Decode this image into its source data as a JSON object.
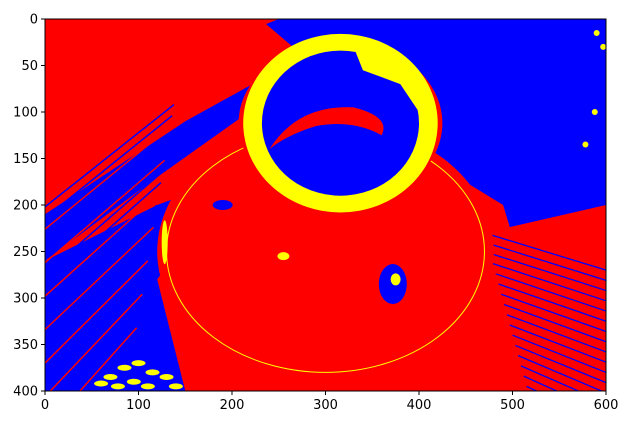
{
  "chart_data": {
    "type": "heatmap",
    "title": "",
    "xlabel": "",
    "ylabel": "",
    "xlim": [
      0,
      600
    ],
    "ylim": [
      400,
      0
    ],
    "grid": false,
    "legend": "none",
    "x_ticks": [
      "0",
      "100",
      "200",
      "300",
      "400",
      "500",
      "600"
    ],
    "y_ticks": [
      "0",
      "50",
      "100",
      "150",
      "200",
      "250",
      "300",
      "350",
      "400"
    ],
    "x_tick_values": [
      0,
      100,
      200,
      300,
      400,
      500,
      600
    ],
    "y_tick_values": [
      0,
      50,
      100,
      150,
      200,
      250,
      300,
      350,
      400
    ],
    "palette": {
      "red": "#ff0000",
      "blue": "#0000ff",
      "yellow": "#ffff00"
    },
    "regions": [
      {
        "name": "background-left-red",
        "color": "red"
      },
      {
        "name": "background-right-blue",
        "color": "blue"
      },
      {
        "name": "vase-body",
        "color": "red"
      },
      {
        "name": "vase-rim",
        "color": "yellow"
      },
      {
        "name": "vase-opening",
        "color": "blue"
      },
      {
        "name": "inner-red-band",
        "color": "red"
      },
      {
        "name": "highlight-specks-bottom-left",
        "color": "yellow"
      }
    ]
  }
}
